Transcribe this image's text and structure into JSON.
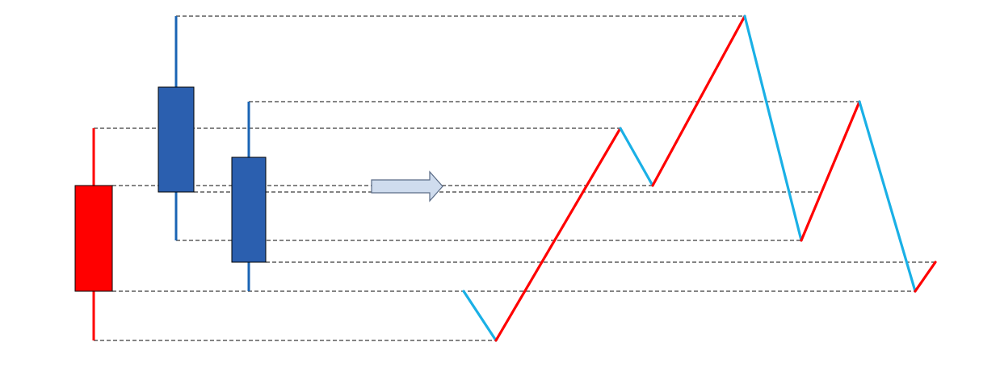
{
  "colors": {
    "bullish_candle": "#ff0000",
    "bearish_candle": "#2b5faf",
    "bearish_wick": "#1a64b4",
    "up_segment": "#ff0000",
    "down_segment": "#1ab0e6",
    "guide_line": "#3a3a3a",
    "arrow_fill": "#cfdcee"
  },
  "icons": {
    "transform_arrow": "right-arrow-icon"
  }
}
